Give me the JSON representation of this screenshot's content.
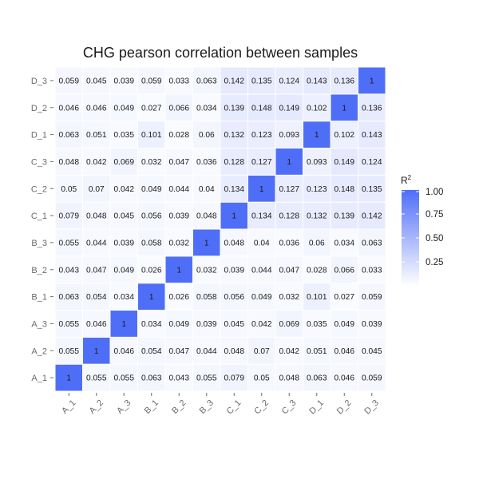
{
  "chart_data": {
    "type": "heatmap",
    "title": "CHG pearson correlation between samples",
    "x_categories": [
      "A_1",
      "A_2",
      "A_3",
      "B_1",
      "B_2",
      "B_3",
      "C_1",
      "C_2",
      "C_3",
      "D_1",
      "D_2",
      "D_3"
    ],
    "y_categories": [
      "A_1",
      "A_2",
      "A_3",
      "B_1",
      "B_2",
      "B_3",
      "C_1",
      "C_2",
      "C_3",
      "D_1",
      "D_2",
      "D_3"
    ],
    "matrix": [
      [
        "1",
        "0.055",
        "0.055",
        "0.063",
        "0.043",
        "0.055",
        "0.079",
        "0.05",
        "0.048",
        "0.063",
        "0.046",
        "0.059"
      ],
      [
        "0.055",
        "1",
        "0.046",
        "0.054",
        "0.047",
        "0.044",
        "0.048",
        "0.07",
        "0.042",
        "0.051",
        "0.046",
        "0.045"
      ],
      [
        "0.055",
        "0.046",
        "1",
        "0.034",
        "0.049",
        "0.039",
        "0.045",
        "0.042",
        "0.069",
        "0.035",
        "0.049",
        "0.039"
      ],
      [
        "0.063",
        "0.054",
        "0.034",
        "1",
        "0.026",
        "0.058",
        "0.056",
        "0.049",
        "0.032",
        "0.101",
        "0.027",
        "0.059"
      ],
      [
        "0.043",
        "0.047",
        "0.049",
        "0.026",
        "1",
        "0.032",
        "0.039",
        "0.044",
        "0.047",
        "0.028",
        "0.066",
        "0.033"
      ],
      [
        "0.055",
        "0.044",
        "0.039",
        "0.058",
        "0.032",
        "1",
        "0.048",
        "0.04",
        "0.036",
        "0.06",
        "0.034",
        "0.063"
      ],
      [
        "0.079",
        "0.048",
        "0.045",
        "0.056",
        "0.039",
        "0.048",
        "1",
        "0.134",
        "0.128",
        "0.132",
        "0.139",
        "0.142"
      ],
      [
        "0.05",
        "0.07",
        "0.042",
        "0.049",
        "0.044",
        "0.04",
        "0.134",
        "1",
        "0.127",
        "0.123",
        "0.148",
        "0.135"
      ],
      [
        "0.048",
        "0.042",
        "0.069",
        "0.032",
        "0.047",
        "0.036",
        "0.128",
        "0.127",
        "1",
        "0.093",
        "0.149",
        "0.124"
      ],
      [
        "0.063",
        "0.051",
        "0.035",
        "0.101",
        "0.028",
        "0.06",
        "0.132",
        "0.123",
        "0.093",
        "1",
        "0.102",
        "0.143"
      ],
      [
        "0.046",
        "0.046",
        "0.049",
        "0.027",
        "0.066",
        "0.034",
        "0.139",
        "0.148",
        "0.149",
        "0.102",
        "1",
        "0.136"
      ],
      [
        "0.059",
        "0.045",
        "0.039",
        "0.059",
        "0.033",
        "0.063",
        "0.142",
        "0.135",
        "0.124",
        "0.143",
        "0.136",
        "1"
      ]
    ],
    "legend": {
      "title": "R",
      "title_superscript": "2",
      "ticks": [
        "1.00",
        "0.75",
        "0.50",
        "0.25"
      ],
      "tick_values": [
        1.0,
        0.75,
        0.5,
        0.25
      ],
      "range": [
        0,
        1
      ],
      "low_color": "#ffffff",
      "high_color": "#4f6ef7"
    },
    "x_label_rotation_deg": -45
  }
}
